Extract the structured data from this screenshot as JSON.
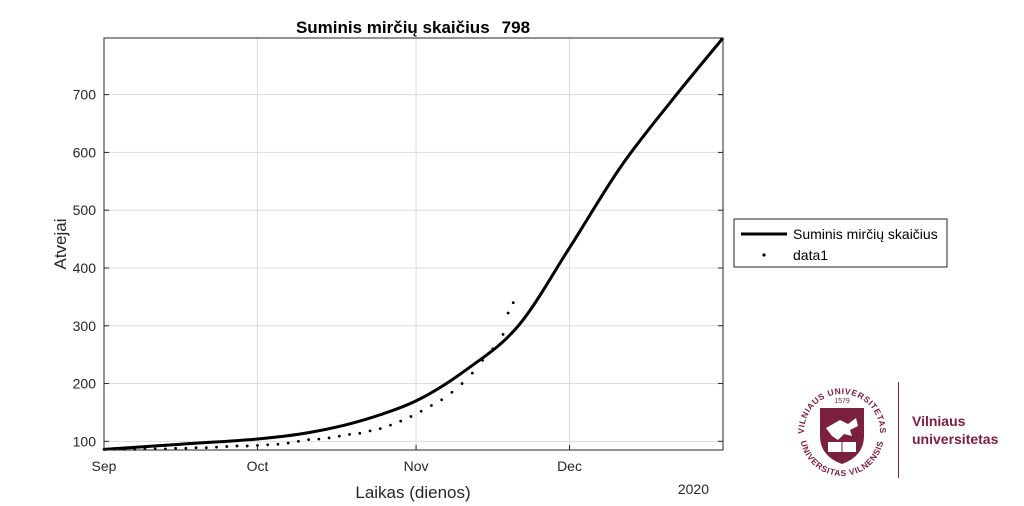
{
  "chart_data": {
    "type": "line",
    "title": "Suminis mirčių skaičius",
    "title_value": "798",
    "xlabel": "Laikas (dienos)",
    "ylabel": "Atvejai",
    "x_tick_labels": [
      "Sep",
      "Oct",
      "Nov",
      "Dec"
    ],
    "x_year_label": "2020",
    "xlim": [
      "2020-09-01",
      "2020-12-31"
    ],
    "ylim": [
      85,
      798
    ],
    "y_ticks": [
      100,
      200,
      300,
      400,
      500,
      600,
      700
    ],
    "grid": true,
    "legend_position": "right",
    "series": [
      {
        "name": "Suminis mirčių skaičius",
        "style": "line",
        "color": "#000000",
        "x": [
          "2020-09-01",
          "2020-09-16",
          "2020-10-01",
          "2020-10-11",
          "2020-10-21",
          "2020-11-01",
          "2020-11-11",
          "2020-11-21",
          "2020-12-01",
          "2020-12-11",
          "2020-12-21",
          "2020-12-31"
        ],
        "y": [
          86,
          95,
          104,
          115,
          135,
          170,
          225,
          300,
          435,
          575,
          690,
          798
        ]
      },
      {
        "name": "data1",
        "style": "points",
        "color": "#000000",
        "x": [
          "2020-09-01",
          "2020-09-03",
          "2020-09-05",
          "2020-09-07",
          "2020-09-09",
          "2020-09-11",
          "2020-09-13",
          "2020-09-15",
          "2020-09-17",
          "2020-09-19",
          "2020-09-21",
          "2020-09-23",
          "2020-09-25",
          "2020-09-27",
          "2020-09-29",
          "2020-10-01",
          "2020-10-03",
          "2020-10-05",
          "2020-10-07",
          "2020-10-09",
          "2020-10-11",
          "2020-10-13",
          "2020-10-15",
          "2020-10-17",
          "2020-10-19",
          "2020-10-21",
          "2020-10-23",
          "2020-10-25",
          "2020-10-27",
          "2020-10-29",
          "2020-10-31",
          "2020-11-02",
          "2020-11-04",
          "2020-11-06",
          "2020-11-08",
          "2020-11-10",
          "2020-11-12",
          "2020-11-14",
          "2020-11-16",
          "2020-11-18",
          "2020-11-19",
          "2020-11-20"
        ],
        "y": [
          86,
          86,
          86,
          86,
          87,
          87,
          87,
          88,
          88,
          89,
          89,
          90,
          91,
          92,
          92,
          93,
          94,
          95,
          97,
          100,
          103,
          104,
          106,
          109,
          112,
          114,
          118,
          122,
          128,
          135,
          143,
          152,
          162,
          172,
          185,
          200,
          218,
          240,
          260,
          285,
          322,
          340
        ]
      }
    ]
  },
  "logo": {
    "name_line1": "Vilniaus",
    "name_line2": "universitetas",
    "seal_top_text": "VILNIAUS UNIVERSITETAS",
    "seal_bottom_text": "UNIVERSITAS VILNENSIS",
    "seal_year": "1579",
    "color": "#7a1f3d"
  }
}
